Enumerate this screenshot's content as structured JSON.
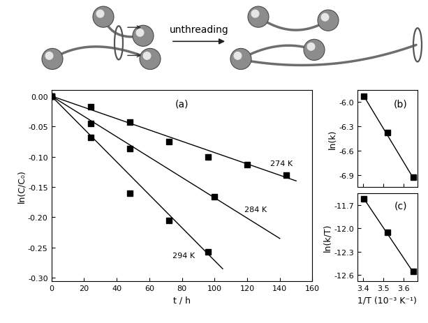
{
  "diagram": {
    "label": "unthreading"
  },
  "chart_data": [
    {
      "type": "scatter",
      "title": "(a)",
      "x_label": "t / h",
      "y_label": "ln(C/C₀)",
      "xlim": [
        0,
        160
      ],
      "xticks": [
        0,
        20,
        40,
        60,
        80,
        100,
        120,
        140,
        160
      ],
      "ylim": [
        -0.305,
        0.01
      ],
      "yticks": [
        {
          "value": 0.0,
          "label": "0.00"
        },
        {
          "value": -0.05,
          "label": "-0.05"
        },
        {
          "value": -0.1,
          "label": "-0.10"
        },
        {
          "value": -0.15,
          "label": "-0.15"
        },
        {
          "value": -0.2,
          "label": "-0.20"
        },
        {
          "value": -0.25,
          "label": "-0.25"
        },
        {
          "value": -0.3,
          "label": "-0.30"
        }
      ],
      "series": [
        {
          "name": "274 K",
          "color": "#000000",
          "marker": "square",
          "line_style": "solid",
          "x": [
            0,
            24,
            48,
            72,
            96,
            120,
            144
          ],
          "values": [
            0.0,
            -0.018,
            -0.043,
            -0.075,
            -0.101,
            -0.113,
            -0.131
          ],
          "fit": {
            "x": [
              0,
              150
            ],
            "values": [
              0.0,
              -0.14
            ]
          }
        },
        {
          "name": "284 K",
          "color": "#000000",
          "marker": "square",
          "line_style": "solid",
          "x": [
            0,
            24,
            48,
            100
          ],
          "values": [
            0.0,
            -0.045,
            -0.087,
            -0.166
          ],
          "fit": {
            "x": [
              0,
              140
            ],
            "values": [
              0.0,
              -0.235
            ]
          }
        },
        {
          "name": "294 K",
          "color": "#000000",
          "marker": "square",
          "line_style": "solid",
          "x": [
            0,
            24,
            48,
            72,
            96
          ],
          "values": [
            0.0,
            -0.068,
            -0.16,
            -0.205,
            -0.257
          ],
          "fit": {
            "x": [
              0,
              105
            ],
            "values": [
              0.0,
              -0.285
            ]
          }
        }
      ]
    },
    {
      "type": "scatter",
      "title": "(b)",
      "y_label": "ln(k)",
      "x": [
        3.401,
        3.521,
        3.65
      ],
      "values": [
        -5.93,
        -6.38,
        -6.93
      ],
      "fit": {
        "x": [
          3.401,
          3.65
        ],
        "values": [
          -5.92,
          -6.94
        ]
      },
      "color": "#000000",
      "marker": "square",
      "line_style": "solid",
      "xlim": [
        3.37,
        3.67
      ],
      "xticks": [
        3.4,
        3.5,
        3.6
      ],
      "ylim": [
        -7.05,
        -5.85
      ],
      "yticks": [
        {
          "value": -6.0,
          "label": "-6.0"
        },
        {
          "value": -6.3,
          "label": "-6.3"
        },
        {
          "value": -6.6,
          "label": "-6.6"
        },
        {
          "value": -6.9,
          "label": "-6.9"
        }
      ],
      "tick_labels": "y"
    },
    {
      "type": "scatter",
      "title": "(c)",
      "x_label": "1/T (10⁻³ K⁻¹)",
      "y_label": "ln(k/T)",
      "x": [
        3.401,
        3.521,
        3.65
      ],
      "values": [
        -11.62,
        -12.05,
        -12.56
      ],
      "fit": {
        "x": [
          3.401,
          3.65
        ],
        "values": [
          -11.61,
          -12.57
        ]
      },
      "color": "#000000",
      "marker": "square",
      "line_style": "solid",
      "xlim": [
        3.37,
        3.67
      ],
      "xticks": [
        3.4,
        3.5,
        3.6
      ],
      "ylim": [
        -12.68,
        -11.55
      ],
      "yticks": [
        {
          "value": -11.7,
          "label": "-11.7"
        },
        {
          "value": -12.0,
          "label": "-12.0"
        },
        {
          "value": -12.3,
          "label": "-12.3"
        },
        {
          "value": -12.6,
          "label": "-12.6"
        }
      ]
    }
  ]
}
